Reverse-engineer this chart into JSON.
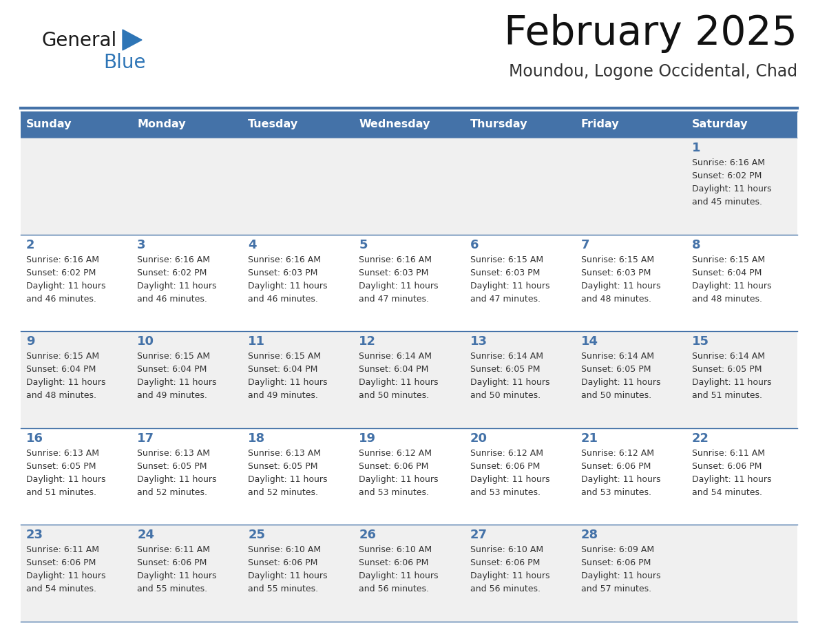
{
  "title": "February 2025",
  "subtitle": "Moundou, Logone Occidental, Chad",
  "days_of_week": [
    "Sunday",
    "Monday",
    "Tuesday",
    "Wednesday",
    "Thursday",
    "Friday",
    "Saturday"
  ],
  "header_bg": "#4472A8",
  "header_text": "#FFFFFF",
  "row_bg_even": "#F0F0F0",
  "row_bg_odd": "#FFFFFF",
  "cell_border_color": "#4472A8",
  "day_number_color": "#4472A8",
  "text_color": "#333333",
  "logo_general_color": "#1a1a1a",
  "logo_blue_color": "#2E75B6",
  "weeks": [
    [
      null,
      null,
      null,
      null,
      null,
      null,
      1
    ],
    [
      2,
      3,
      4,
      5,
      6,
      7,
      8
    ],
    [
      9,
      10,
      11,
      12,
      13,
      14,
      15
    ],
    [
      16,
      17,
      18,
      19,
      20,
      21,
      22
    ],
    [
      23,
      24,
      25,
      26,
      27,
      28,
      null
    ]
  ],
  "cell_data": {
    "1": {
      "sunrise": "6:16 AM",
      "sunset": "6:02 PM",
      "daylight_line1": "Daylight: 11 hours",
      "daylight_line2": "and 45 minutes."
    },
    "2": {
      "sunrise": "6:16 AM",
      "sunset": "6:02 PM",
      "daylight_line1": "Daylight: 11 hours",
      "daylight_line2": "and 46 minutes."
    },
    "3": {
      "sunrise": "6:16 AM",
      "sunset": "6:02 PM",
      "daylight_line1": "Daylight: 11 hours",
      "daylight_line2": "and 46 minutes."
    },
    "4": {
      "sunrise": "6:16 AM",
      "sunset": "6:03 PM",
      "daylight_line1": "Daylight: 11 hours",
      "daylight_line2": "and 46 minutes."
    },
    "5": {
      "sunrise": "6:16 AM",
      "sunset": "6:03 PM",
      "daylight_line1": "Daylight: 11 hours",
      "daylight_line2": "and 47 minutes."
    },
    "6": {
      "sunrise": "6:15 AM",
      "sunset": "6:03 PM",
      "daylight_line1": "Daylight: 11 hours",
      "daylight_line2": "and 47 minutes."
    },
    "7": {
      "sunrise": "6:15 AM",
      "sunset": "6:03 PM",
      "daylight_line1": "Daylight: 11 hours",
      "daylight_line2": "and 48 minutes."
    },
    "8": {
      "sunrise": "6:15 AM",
      "sunset": "6:04 PM",
      "daylight_line1": "Daylight: 11 hours",
      "daylight_line2": "and 48 minutes."
    },
    "9": {
      "sunrise": "6:15 AM",
      "sunset": "6:04 PM",
      "daylight_line1": "Daylight: 11 hours",
      "daylight_line2": "and 48 minutes."
    },
    "10": {
      "sunrise": "6:15 AM",
      "sunset": "6:04 PM",
      "daylight_line1": "Daylight: 11 hours",
      "daylight_line2": "and 49 minutes."
    },
    "11": {
      "sunrise": "6:15 AM",
      "sunset": "6:04 PM",
      "daylight_line1": "Daylight: 11 hours",
      "daylight_line2": "and 49 minutes."
    },
    "12": {
      "sunrise": "6:14 AM",
      "sunset": "6:04 PM",
      "daylight_line1": "Daylight: 11 hours",
      "daylight_line2": "and 50 minutes."
    },
    "13": {
      "sunrise": "6:14 AM",
      "sunset": "6:05 PM",
      "daylight_line1": "Daylight: 11 hours",
      "daylight_line2": "and 50 minutes."
    },
    "14": {
      "sunrise": "6:14 AM",
      "sunset": "6:05 PM",
      "daylight_line1": "Daylight: 11 hours",
      "daylight_line2": "and 50 minutes."
    },
    "15": {
      "sunrise": "6:14 AM",
      "sunset": "6:05 PM",
      "daylight_line1": "Daylight: 11 hours",
      "daylight_line2": "and 51 minutes."
    },
    "16": {
      "sunrise": "6:13 AM",
      "sunset": "6:05 PM",
      "daylight_line1": "Daylight: 11 hours",
      "daylight_line2": "and 51 minutes."
    },
    "17": {
      "sunrise": "6:13 AM",
      "sunset": "6:05 PM",
      "daylight_line1": "Daylight: 11 hours",
      "daylight_line2": "and 52 minutes."
    },
    "18": {
      "sunrise": "6:13 AM",
      "sunset": "6:05 PM",
      "daylight_line1": "Daylight: 11 hours",
      "daylight_line2": "and 52 minutes."
    },
    "19": {
      "sunrise": "6:12 AM",
      "sunset": "6:06 PM",
      "daylight_line1": "Daylight: 11 hours",
      "daylight_line2": "and 53 minutes."
    },
    "20": {
      "sunrise": "6:12 AM",
      "sunset": "6:06 PM",
      "daylight_line1": "Daylight: 11 hours",
      "daylight_line2": "and 53 minutes."
    },
    "21": {
      "sunrise": "6:12 AM",
      "sunset": "6:06 PM",
      "daylight_line1": "Daylight: 11 hours",
      "daylight_line2": "and 53 minutes."
    },
    "22": {
      "sunrise": "6:11 AM",
      "sunset": "6:06 PM",
      "daylight_line1": "Daylight: 11 hours",
      "daylight_line2": "and 54 minutes."
    },
    "23": {
      "sunrise": "6:11 AM",
      "sunset": "6:06 PM",
      "daylight_line1": "Daylight: 11 hours",
      "daylight_line2": "and 54 minutes."
    },
    "24": {
      "sunrise": "6:11 AM",
      "sunset": "6:06 PM",
      "daylight_line1": "Daylight: 11 hours",
      "daylight_line2": "and 55 minutes."
    },
    "25": {
      "sunrise": "6:10 AM",
      "sunset": "6:06 PM",
      "daylight_line1": "Daylight: 11 hours",
      "daylight_line2": "and 55 minutes."
    },
    "26": {
      "sunrise": "6:10 AM",
      "sunset": "6:06 PM",
      "daylight_line1": "Daylight: 11 hours",
      "daylight_line2": "and 56 minutes."
    },
    "27": {
      "sunrise": "6:10 AM",
      "sunset": "6:06 PM",
      "daylight_line1": "Daylight: 11 hours",
      "daylight_line2": "and 56 minutes."
    },
    "28": {
      "sunrise": "6:09 AM",
      "sunset": "6:06 PM",
      "daylight_line1": "Daylight: 11 hours",
      "daylight_line2": "and 57 minutes."
    }
  },
  "fig_width": 11.88,
  "fig_height": 9.18,
  "dpi": 100
}
